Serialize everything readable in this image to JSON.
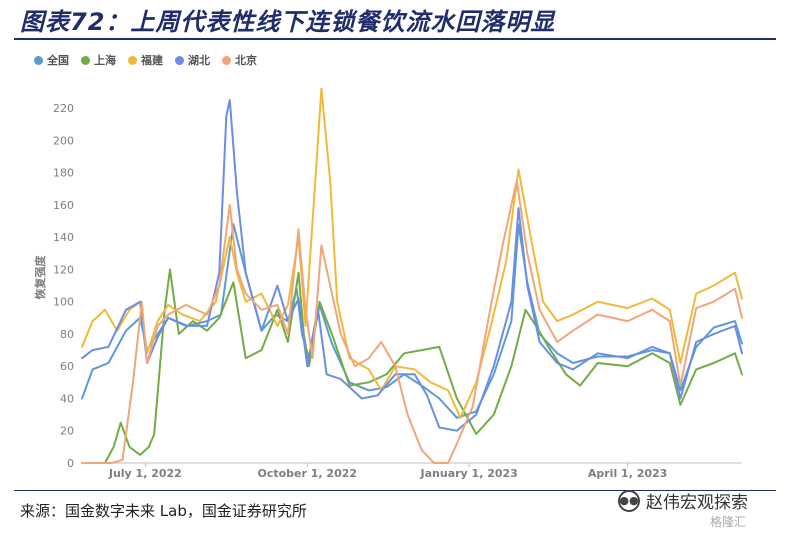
{
  "header": {
    "title": "图表72：上周代表性线下连锁餐饮流水回落明显"
  },
  "source": {
    "text": "来源：国金数字未来 Lab，国金证券研究所"
  },
  "watermark": {
    "text": "赵伟宏观探索",
    "sub": "格隆汇",
    "icon": "wechat-icon"
  },
  "chart_data": {
    "type": "line",
    "title": "",
    "xlabel": "",
    "ylabel": "恢复强度",
    "ylim": [
      0,
      230
    ],
    "yticks": [
      0,
      20,
      40,
      60,
      80,
      100,
      120,
      140,
      160,
      180,
      200,
      220
    ],
    "xlim": [
      "2022-05-26",
      "2023-06-05"
    ],
    "xticks": [
      {
        "date": "2022-07-01",
        "label": "July 1, 2022"
      },
      {
        "date": "2022-10-01",
        "label": "October 1, 2022"
      },
      {
        "date": "2023-01-01",
        "label": "January 1, 2023"
      },
      {
        "date": "2023-04-01",
        "label": "April 1, 2023"
      }
    ],
    "grid": false,
    "legend": "top-left",
    "series": [
      {
        "name": "全国",
        "color": "#5B9BD5",
        "points": [
          [
            "2022-05-26",
            40
          ],
          [
            "2022-06-01",
            58
          ],
          [
            "2022-06-10",
            62
          ],
          [
            "2022-06-20",
            82
          ],
          [
            "2022-06-28",
            90
          ],
          [
            "2022-07-02",
            70
          ],
          [
            "2022-07-08",
            80
          ],
          [
            "2022-07-14",
            90
          ],
          [
            "2022-07-25",
            85
          ],
          [
            "2022-08-05",
            88
          ],
          [
            "2022-08-13",
            92
          ],
          [
            "2022-08-20",
            148
          ],
          [
            "2022-08-27",
            118
          ],
          [
            "2022-09-05",
            82
          ],
          [
            "2022-09-13",
            92
          ],
          [
            "2022-09-20",
            88
          ],
          [
            "2022-09-25",
            108
          ],
          [
            "2022-09-28",
            80
          ],
          [
            "2022-10-02",
            65
          ],
          [
            "2022-10-08",
            98
          ],
          [
            "2022-10-15",
            74
          ],
          [
            "2022-10-25",
            50
          ],
          [
            "2022-11-05",
            45
          ],
          [
            "2022-11-15",
            47
          ],
          [
            "2022-11-25",
            55
          ],
          [
            "2022-12-05",
            48
          ],
          [
            "2022-12-15",
            40
          ],
          [
            "2022-12-25",
            28
          ],
          [
            "2023-01-05",
            32
          ],
          [
            "2023-01-15",
            55
          ],
          [
            "2023-01-25",
            88
          ],
          [
            "2023-01-29",
            148
          ],
          [
            "2023-02-03",
            112
          ],
          [
            "2023-02-10",
            80
          ],
          [
            "2023-02-20",
            68
          ],
          [
            "2023-03-01",
            62
          ],
          [
            "2023-03-15",
            66
          ],
          [
            "2023-04-01",
            66
          ],
          [
            "2023-04-15",
            70
          ],
          [
            "2023-04-25",
            68
          ],
          [
            "2023-05-01",
            45
          ],
          [
            "2023-05-10",
            72
          ],
          [
            "2023-05-20",
            84
          ],
          [
            "2023-06-01",
            88
          ],
          [
            "2023-06-05",
            74
          ]
        ]
      },
      {
        "name": "上海",
        "color": "#70AD47",
        "points": [
          [
            "2022-05-26",
            0
          ],
          [
            "2022-06-08",
            0
          ],
          [
            "2022-06-13",
            10
          ],
          [
            "2022-06-17",
            25
          ],
          [
            "2022-06-22",
            10
          ],
          [
            "2022-06-28",
            5
          ],
          [
            "2022-07-03",
            10
          ],
          [
            "2022-07-06",
            18
          ],
          [
            "2022-07-12",
            95
          ],
          [
            "2022-07-15",
            120
          ],
          [
            "2022-07-20",
            80
          ],
          [
            "2022-07-28",
            88
          ],
          [
            "2022-08-05",
            82
          ],
          [
            "2022-08-12",
            90
          ],
          [
            "2022-08-20",
            112
          ],
          [
            "2022-08-27",
            65
          ],
          [
            "2022-09-05",
            70
          ],
          [
            "2022-09-14",
            95
          ],
          [
            "2022-09-20",
            75
          ],
          [
            "2022-09-26",
            118
          ],
          [
            "2022-09-29",
            80
          ],
          [
            "2022-10-02",
            60
          ],
          [
            "2022-10-08",
            100
          ],
          [
            "2022-10-15",
            80
          ],
          [
            "2022-10-25",
            48
          ],
          [
            "2022-11-05",
            50
          ],
          [
            "2022-11-15",
            55
          ],
          [
            "2022-11-25",
            68
          ],
          [
            "2022-12-05",
            70
          ],
          [
            "2022-12-15",
            72
          ],
          [
            "2022-12-25",
            40
          ],
          [
            "2023-01-05",
            18
          ],
          [
            "2023-01-15",
            30
          ],
          [
            "2023-01-25",
            60
          ],
          [
            "2023-02-02",
            95
          ],
          [
            "2023-02-08",
            85
          ],
          [
            "2023-02-15",
            72
          ],
          [
            "2023-02-25",
            55
          ],
          [
            "2023-03-05",
            48
          ],
          [
            "2023-03-15",
            62
          ],
          [
            "2023-04-01",
            60
          ],
          [
            "2023-04-15",
            68
          ],
          [
            "2023-04-25",
            62
          ],
          [
            "2023-05-01",
            36
          ],
          [
            "2023-05-10",
            58
          ],
          [
            "2023-05-20",
            62
          ],
          [
            "2023-06-01",
            68
          ],
          [
            "2023-06-05",
            55
          ]
        ]
      },
      {
        "name": "福建",
        "color": "#F0B93A",
        "points": [
          [
            "2022-05-26",
            72
          ],
          [
            "2022-06-01",
            88
          ],
          [
            "2022-06-08",
            95
          ],
          [
            "2022-06-15",
            82
          ],
          [
            "2022-06-22",
            95
          ],
          [
            "2022-06-28",
            100
          ],
          [
            "2022-07-02",
            68
          ],
          [
            "2022-07-08",
            88
          ],
          [
            "2022-07-14",
            98
          ],
          [
            "2022-07-22",
            92
          ],
          [
            "2022-08-01",
            88
          ],
          [
            "2022-08-10",
            100
          ],
          [
            "2022-08-18",
            140
          ],
          [
            "2022-08-22",
            118
          ],
          [
            "2022-08-27",
            100
          ],
          [
            "2022-09-05",
            105
          ],
          [
            "2022-09-14",
            85
          ],
          [
            "2022-09-20",
            98
          ],
          [
            "2022-09-26",
            140
          ],
          [
            "2022-09-30",
            85
          ],
          [
            "2022-10-04",
            150
          ],
          [
            "2022-10-09",
            232
          ],
          [
            "2022-10-14",
            175
          ],
          [
            "2022-10-18",
            100
          ],
          [
            "2022-10-25",
            65
          ],
          [
            "2022-11-05",
            58
          ],
          [
            "2022-11-12",
            45
          ],
          [
            "2022-11-20",
            60
          ],
          [
            "2022-12-01",
            58
          ],
          [
            "2022-12-10",
            50
          ],
          [
            "2022-12-20",
            45
          ],
          [
            "2022-12-27",
            28
          ],
          [
            "2023-01-05",
            50
          ],
          [
            "2023-01-14",
            88
          ],
          [
            "2023-01-22",
            125
          ],
          [
            "2023-01-29",
            182
          ],
          [
            "2023-02-05",
            140
          ],
          [
            "2023-02-12",
            100
          ],
          [
            "2023-02-20",
            88
          ],
          [
            "2023-03-01",
            92
          ],
          [
            "2023-03-15",
            100
          ],
          [
            "2023-04-01",
            96
          ],
          [
            "2023-04-15",
            102
          ],
          [
            "2023-04-25",
            95
          ],
          [
            "2023-05-01",
            62
          ],
          [
            "2023-05-10",
            105
          ],
          [
            "2023-05-20",
            110
          ],
          [
            "2023-06-01",
            118
          ],
          [
            "2023-06-05",
            102
          ]
        ]
      },
      {
        "name": "湖北",
        "color": "#6B8DE3",
        "points": [
          [
            "2022-05-26",
            65
          ],
          [
            "2022-06-01",
            70
          ],
          [
            "2022-06-10",
            72
          ],
          [
            "2022-06-20",
            95
          ],
          [
            "2022-06-28",
            100
          ],
          [
            "2022-07-02",
            62
          ],
          [
            "2022-07-08",
            78
          ],
          [
            "2022-07-14",
            90
          ],
          [
            "2022-07-24",
            85
          ],
          [
            "2022-08-05",
            85
          ],
          [
            "2022-08-12",
            118
          ],
          [
            "2022-08-16",
            215
          ],
          [
            "2022-08-18",
            225
          ],
          [
            "2022-08-22",
            168
          ],
          [
            "2022-08-27",
            118
          ],
          [
            "2022-09-05",
            82
          ],
          [
            "2022-09-14",
            110
          ],
          [
            "2022-09-20",
            88
          ],
          [
            "2022-09-26",
            102
          ],
          [
            "2022-10-01",
            60
          ],
          [
            "2022-10-07",
            96
          ],
          [
            "2022-10-12",
            55
          ],
          [
            "2022-10-20",
            52
          ],
          [
            "2022-11-01",
            40
          ],
          [
            "2022-11-10",
            42
          ],
          [
            "2022-11-20",
            55
          ],
          [
            "2022-12-01",
            55
          ],
          [
            "2022-12-08",
            42
          ],
          [
            "2022-12-15",
            22
          ],
          [
            "2022-12-25",
            20
          ],
          [
            "2023-01-05",
            30
          ],
          [
            "2023-01-15",
            60
          ],
          [
            "2023-01-25",
            100
          ],
          [
            "2023-01-29",
            158
          ],
          [
            "2023-02-03",
            110
          ],
          [
            "2023-02-10",
            75
          ],
          [
            "2023-02-20",
            62
          ],
          [
            "2023-03-01",
            58
          ],
          [
            "2023-03-15",
            68
          ],
          [
            "2023-04-01",
            65
          ],
          [
            "2023-04-15",
            72
          ],
          [
            "2023-04-25",
            68
          ],
          [
            "2023-05-01",
            40
          ],
          [
            "2023-05-10",
            75
          ],
          [
            "2023-05-20",
            80
          ],
          [
            "2023-06-01",
            85
          ],
          [
            "2023-06-05",
            68
          ]
        ]
      },
      {
        "name": "北京",
        "color": "#EFA67A",
        "points": [
          [
            "2022-05-26",
            0
          ],
          [
            "2022-06-12",
            0
          ],
          [
            "2022-06-18",
            2
          ],
          [
            "2022-06-24",
            50
          ],
          [
            "2022-06-29",
            100
          ],
          [
            "2022-07-02",
            62
          ],
          [
            "2022-07-08",
            85
          ],
          [
            "2022-07-14",
            92
          ],
          [
            "2022-07-24",
            98
          ],
          [
            "2022-08-05",
            92
          ],
          [
            "2022-08-12",
            110
          ],
          [
            "2022-08-18",
            160
          ],
          [
            "2022-08-22",
            120
          ],
          [
            "2022-08-27",
            105
          ],
          [
            "2022-09-05",
            95
          ],
          [
            "2022-09-14",
            98
          ],
          [
            "2022-09-20",
            80
          ],
          [
            "2022-09-26",
            145
          ],
          [
            "2022-09-30",
            95
          ],
          [
            "2022-10-04",
            65
          ],
          [
            "2022-10-09",
            135
          ],
          [
            "2022-10-14",
            110
          ],
          [
            "2022-10-20",
            80
          ],
          [
            "2022-10-28",
            60
          ],
          [
            "2022-11-05",
            65
          ],
          [
            "2022-11-12",
            75
          ],
          [
            "2022-11-20",
            60
          ],
          [
            "2022-11-27",
            30
          ],
          [
            "2022-12-05",
            8
          ],
          [
            "2022-12-12",
            0
          ],
          [
            "2022-12-20",
            0
          ],
          [
            "2022-12-25",
            12
          ],
          [
            "2023-01-03",
            35
          ],
          [
            "2023-01-12",
            90
          ],
          [
            "2023-01-20",
            135
          ],
          [
            "2023-01-28",
            175
          ],
          [
            "2023-02-03",
            130
          ],
          [
            "2023-02-10",
            95
          ],
          [
            "2023-02-20",
            75
          ],
          [
            "2023-03-01",
            82
          ],
          [
            "2023-03-15",
            92
          ],
          [
            "2023-04-01",
            88
          ],
          [
            "2023-04-15",
            95
          ],
          [
            "2023-04-25",
            88
          ],
          [
            "2023-05-01",
            48
          ],
          [
            "2023-05-10",
            96
          ],
          [
            "2023-05-20",
            100
          ],
          [
            "2023-06-01",
            108
          ],
          [
            "2023-06-05",
            90
          ]
        ]
      }
    ]
  }
}
